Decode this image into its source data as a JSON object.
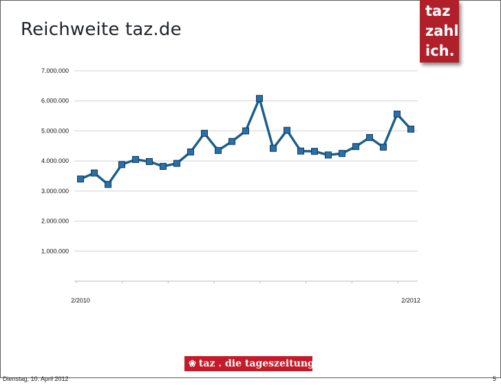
{
  "slide": {
    "title": "Reichweite taz.de",
    "logo_lines": [
      "taz",
      "zahl",
      "ich."
    ],
    "footer_logo_text": "taz . die tageszeitung",
    "footer_logo_icon": "paw-icon",
    "footer_date": "Dienstag, 10. April 2012",
    "page_number": "5"
  },
  "colors": {
    "line": "#1a5f8a",
    "marker": "#2a6fa8",
    "marker_stroke": "#103a5c",
    "grid": "#d0d0d0",
    "brand_red": "#b0202a"
  },
  "chart_data": {
    "type": "line",
    "title": "Reichweite taz.de",
    "xlabel": "",
    "ylabel": "",
    "x_labels": [
      "2/2010",
      "2/2012"
    ],
    "x_label_indices": [
      0,
      24
    ],
    "ylim": [
      0,
      7000000
    ],
    "yticks": [
      1000000,
      2000000,
      3000000,
      4000000,
      5000000,
      6000000,
      7000000
    ],
    "ytick_labels": [
      "1.000.000",
      "2.000.000",
      "3.000.000",
      "4.000.000",
      "5.000.000",
      "6.000.000",
      "7.000.000"
    ],
    "grid": true,
    "series": [
      {
        "name": "Reichweite",
        "values": [
          3400000,
          3600000,
          3220000,
          3880000,
          4050000,
          3980000,
          3820000,
          3920000,
          4300000,
          4920000,
          4350000,
          4650000,
          5000000,
          6080000,
          4420000,
          5020000,
          4330000,
          4320000,
          4200000,
          4250000,
          4480000,
          4780000,
          4460000,
          5560000,
          5060000
        ]
      }
    ]
  }
}
